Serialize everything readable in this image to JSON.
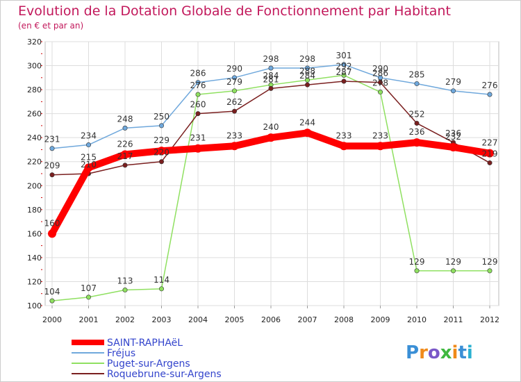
{
  "chart_data": {
    "type": "line",
    "title": "Evolution de la Dotation Globale de Fonctionnement par Habitant",
    "subtitle": "(en € et par an)",
    "x": [
      "2000",
      "2001",
      "2002",
      "2003",
      "2004",
      "2005",
      "2006",
      "2007",
      "2008",
      "2009",
      "2010",
      "2011",
      "2012"
    ],
    "ylim": [
      100,
      320
    ],
    "yticks": [
      100,
      120,
      140,
      160,
      180,
      200,
      220,
      240,
      260,
      280,
      300,
      320
    ],
    "grid": true,
    "legend_position": "bottom-left",
    "series": [
      {
        "name": "SAINT-RAPHAëL",
        "color": "#ff0000",
        "values": [
          160,
          215,
          226,
          229,
          231,
          233,
          240,
          244,
          233,
          233,
          236,
          232,
          227
        ]
      },
      {
        "name": "Fréjus",
        "color": "#6fa8dc",
        "values": [
          231,
          234,
          248,
          250,
          286,
          290,
          298,
          298,
          301,
          290,
          285,
          279,
          276
        ]
      },
      {
        "name": "Puget-sur-Argens",
        "color": "#8fe060",
        "values": [
          104,
          107,
          113,
          114,
          276,
          279,
          284,
          288,
          292,
          278,
          129,
          129,
          129
        ]
      },
      {
        "name": "Roquebrune-sur-Argens",
        "color": "#7a1f1f",
        "values": [
          209,
          210,
          217,
          220,
          260,
          262,
          281,
          284,
          287,
          286,
          252,
          236,
          219
        ]
      }
    ]
  },
  "brand": {
    "text": "Proxiti",
    "colors": [
      "#3a8fd6",
      "#f08a1a",
      "#7a58c8",
      "#3fb83f",
      "#f08a1a",
      "#3a8fd6",
      "#2ab0d0"
    ]
  },
  "colors": {
    "title": "#c2185b",
    "grid": "#dddddd",
    "plot_background": "#ffffff",
    "legend_text": "#3344cc"
  }
}
